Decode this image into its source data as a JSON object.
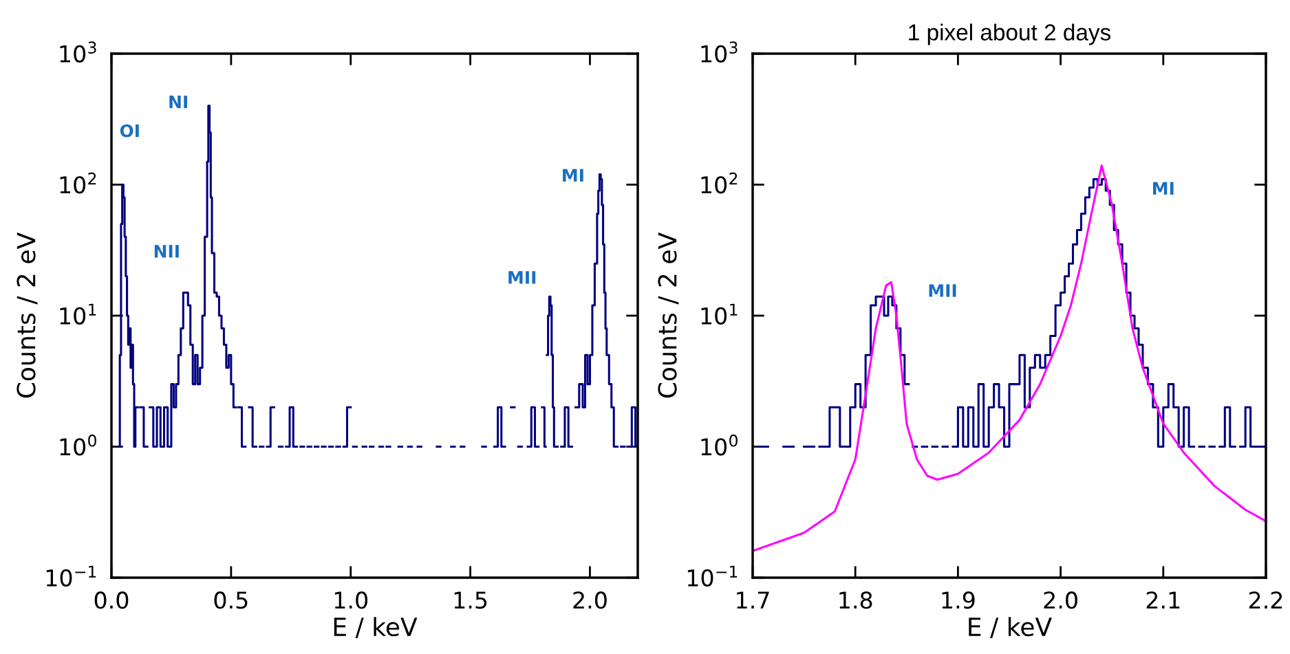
{
  "chart_data": [
    {
      "type": "step",
      "xlabel": "E / keV",
      "ylabel": "Counts / 2 eV",
      "log": "y",
      "xlim": [
        0,
        2.2
      ],
      "xticks": [
        {
          "value": 0,
          "label": "0.0"
        },
        0.5,
        {
          "value": 1,
          "label": "1.0"
        },
        1.5,
        {
          "value": 2,
          "label": "2.0"
        }
      ],
      "ylim": [
        0.1,
        1000
      ],
      "yticks": [
        {
          "value": 0.1,
          "label": "10$^{−1}$"
        },
        {
          "value": 1,
          "label": "10$^{0}$"
        },
        {
          "value": 10,
          "label": "10$^{1}$"
        },
        {
          "value": 100,
          "label": "10$^{2}$"
        },
        {
          "value": 1000,
          "label": "10$^{3}$"
        }
      ],
      "annotations": [
        "OI",
        "NI",
        "NII",
        "MII",
        "MI"
      ],
      "series": [
        {
          "color": "#000080",
          "x": [
            0.03,
            0.035,
            0.04,
            0.045,
            0.05,
            0.055,
            0.06,
            0.065,
            0.07,
            0.075,
            0.08,
            0.085,
            0.09,
            0.095,
            0.1,
            0.11,
            0.12,
            0.135,
            0.15,
            0.16,
            0.175,
            0.19,
            0.205,
            0.22,
            0.235,
            0.25,
            0.26,
            0.27,
            0.28,
            0.29,
            0.3,
            0.31,
            0.32,
            0.33,
            0.34,
            0.35,
            0.36,
            0.37,
            0.38,
            0.39,
            0.4,
            0.405,
            0.41,
            0.415,
            0.42,
            0.43,
            0.44,
            0.45,
            0.46,
            0.47,
            0.48,
            0.49,
            0.5,
            0.51,
            0.52,
            0.53,
            0.545,
            0.56,
            0.575,
            0.59,
            0.605,
            0.62,
            0.635,
            0.65,
            0.665,
            0.68,
            0.7,
            0.715,
            0.73,
            0.745,
            0.76,
            0.775,
            0.79,
            0.805,
            0.82,
            0.835,
            0.85,
            0.865,
            0.88,
            0.895,
            0.91,
            0.925,
            0.94,
            0.955,
            0.97,
            0.985,
            1.0,
            1.01,
            1.025,
            1.05,
            1.065,
            1.08,
            1.095,
            1.12,
            1.135,
            1.15,
            1.165,
            1.2,
            1.215,
            1.24,
            1.255,
            1.28,
            1.295,
            1.36,
            1.375,
            1.42,
            1.435,
            1.46,
            1.475,
            1.55,
            1.565,
            1.6,
            1.615,
            1.63,
            1.645,
            1.67,
            1.685,
            1.7,
            1.715,
            1.74,
            1.755,
            1.77,
            1.785,
            1.8,
            1.81,
            1.815,
            1.82,
            1.825,
            1.83,
            1.835,
            1.84,
            1.845,
            1.85,
            1.865,
            1.88,
            1.895,
            1.91,
            1.925,
            1.94,
            1.955,
            1.97,
            1.98,
            1.99,
            2.0,
            2.01,
            2.02,
            2.03,
            2.035,
            2.04,
            2.045,
            2.05,
            2.055,
            2.06,
            2.065,
            2.07,
            2.08,
            2.09,
            2.1,
            2.115,
            2.13,
            2.145,
            2.16,
            2.175,
            2.19,
            2.199
          ],
          "values": [
            1,
            5,
            50,
            100,
            80,
            40,
            20,
            10,
            6,
            8,
            4,
            6,
            3,
            1,
            2,
            null,
            2,
            1,
            null,
            2,
            1,
            2,
            1,
            2,
            1,
            3,
            2,
            3,
            5,
            8,
            15,
            15,
            12,
            6,
            3,
            5,
            3,
            4,
            10,
            40,
            150,
            400,
            250,
            80,
            30,
            15,
            14,
            10,
            8,
            6,
            4,
            5,
            3,
            2,
            null,
            2,
            1,
            null,
            2,
            1,
            null,
            1,
            null,
            1,
            2,
            null,
            1,
            null,
            1,
            2,
            1,
            null,
            1,
            null,
            1,
            null,
            1,
            null,
            1,
            null,
            1,
            null,
            1,
            null,
            1,
            2,
            null,
            1,
            null,
            1,
            null,
            1,
            null,
            1,
            null,
            1,
            null,
            1,
            null,
            1,
            null,
            1,
            null,
            1,
            null,
            1,
            null,
            1,
            null,
            1,
            null,
            1,
            2,
            1,
            null,
            2,
            null,
            1,
            null,
            1,
            2,
            1,
            null,
            2,
            1,
            null,
            5,
            10,
            14,
            12,
            5,
            2,
            1,
            null,
            1,
            2,
            1,
            null,
            2,
            3,
            2,
            5,
            3,
            5,
            12,
            25,
            60,
            90,
            120,
            110,
            70,
            35,
            15,
            8,
            5,
            3,
            2,
            1,
            null,
            1,
            null,
            1,
            2,
            1,
            1
          ]
        }
      ]
    },
    {
      "type": "step",
      "title": "1 pixel about 2 days",
      "xlabel": "E / keV",
      "ylabel": "Counts / 2 eV",
      "log": "y",
      "xlim": [
        1.7,
        2.2
      ],
      "xticks": [
        1.7,
        1.8,
        1.9,
        {
          "value": 2,
          "label": "2.0"
        },
        2.1,
        2.2
      ],
      "ylim": [
        0.1,
        1000
      ],
      "yticks": [
        {
          "value": 0.1,
          "label": "10$^{−1}$"
        },
        {
          "value": 1,
          "label": "10$^{0}$"
        },
        {
          "value": 10,
          "label": "10$^{1}$"
        },
        {
          "value": 100,
          "label": "10$^{2}$"
        },
        {
          "value": 1000,
          "label": "10$^{3}$"
        }
      ],
      "annotations": [
        "MII",
        "MI"
      ],
      "series": [
        {
          "color": "#000080",
          "x": [
            1.705,
            1.715,
            1.73,
            1.74,
            1.75,
            1.76,
            1.765,
            1.775,
            1.785,
            1.795,
            1.8,
            1.805,
            1.81,
            1.815,
            1.82,
            1.824,
            1.828,
            1.832,
            1.836,
            1.84,
            1.844,
            1.848,
            1.852,
            1.856,
            1.86,
            1.865,
            1.87,
            1.875,
            1.88,
            1.885,
            1.89,
            1.895,
            1.9,
            1.905,
            1.91,
            1.915,
            1.92,
            1.925,
            1.93,
            1.935,
            1.94,
            1.945,
            1.95,
            1.955,
            1.96,
            1.965,
            1.97,
            1.975,
            1.98,
            1.985,
            1.99,
            1.995,
            2.0,
            2.004,
            2.008,
            2.012,
            2.016,
            2.02,
            2.024,
            2.028,
            2.032,
            2.036,
            2.04,
            2.044,
            2.048,
            2.052,
            2.056,
            2.06,
            2.064,
            2.068,
            2.072,
            2.076,
            2.08,
            2.085,
            2.09,
            2.095,
            2.1,
            2.105,
            2.11,
            2.115,
            2.12,
            2.125,
            2.13,
            2.135,
            2.14,
            2.145,
            2.15,
            2.155,
            2.16,
            2.165,
            2.17,
            2.175,
            2.18,
            2.185,
            2.199
          ],
          "values": [
            1,
            null,
            1,
            null,
            1,
            null,
            1,
            2,
            1,
            2,
            3,
            2,
            5,
            12,
            14,
            14,
            10,
            14,
            12,
            8,
            5,
            3,
            null,
            1,
            null,
            1,
            null,
            1,
            null,
            1,
            null,
            1,
            2,
            1,
            2,
            1,
            3,
            1,
            2,
            3,
            2,
            1,
            3,
            3,
            5,
            2,
            4,
            5,
            4,
            5,
            7,
            12,
            15,
            20,
            25,
            35,
            45,
            60,
            80,
            95,
            110,
            100,
            110,
            90,
            70,
            45,
            35,
            25,
            15,
            10,
            8,
            6,
            4,
            3,
            2,
            1,
            2,
            3,
            2,
            1,
            2,
            1,
            null,
            1,
            null,
            1,
            null,
            1,
            2,
            1,
            null,
            1,
            2,
            1,
            1
          ]
        },
        {
          "type": "line",
          "color": "#ff00ff",
          "x": [
            1.7,
            1.75,
            1.78,
            1.8,
            1.81,
            1.82,
            1.83,
            1.835,
            1.84,
            1.845,
            1.85,
            1.86,
            1.87,
            1.88,
            1.9,
            1.93,
            1.96,
            1.98,
            2.0,
            2.01,
            2.02,
            2.03,
            2.04,
            2.05,
            2.06,
            2.07,
            2.08,
            2.1,
            2.12,
            2.15,
            2.18,
            2.2
          ],
          "values": [
            0.16,
            0.22,
            0.32,
            0.8,
            2.5,
            8,
            17,
            18,
            10,
            4,
            1.5,
            0.8,
            0.6,
            0.56,
            0.62,
            0.9,
            1.6,
            3,
            7,
            12,
            25,
            60,
            140,
            70,
            25,
            8,
            4,
            1.5,
            0.9,
            0.5,
            0.33,
            0.27
          ]
        }
      ]
    }
  ]
}
